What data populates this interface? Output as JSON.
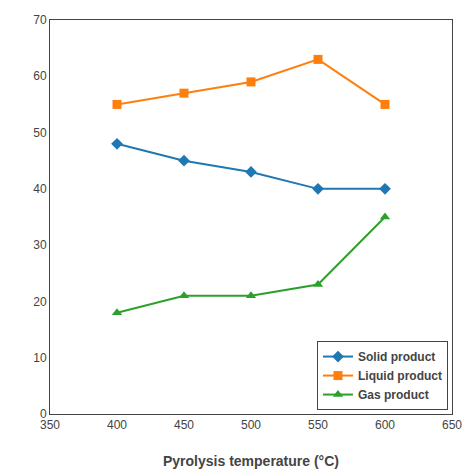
{
  "chart_data": {
    "type": "line",
    "x_label": "Pyrolysis temperature (°C)",
    "x": [
      400,
      450,
      500,
      550,
      600
    ],
    "series": [
      {
        "name": "Solid product",
        "marker": "diamond",
        "values": [
          48,
          45,
          43,
          40,
          40
        ]
      },
      {
        "name": "Liquid product",
        "marker": "square",
        "values": [
          55,
          57,
          59,
          63,
          55
        ]
      },
      {
        "name": "Gas product",
        "marker": "triangle-up",
        "values": [
          18,
          21,
          21,
          23,
          35
        ]
      }
    ],
    "xlim": [
      350,
      650
    ],
    "xticks": [
      350,
      400,
      450,
      500,
      550,
      600,
      650
    ],
    "ylim": [
      0,
      70
    ],
    "yticks": [
      0,
      10,
      20,
      30,
      40,
      50,
      60,
      70
    ],
    "grid": false,
    "legend": "lower right"
  }
}
